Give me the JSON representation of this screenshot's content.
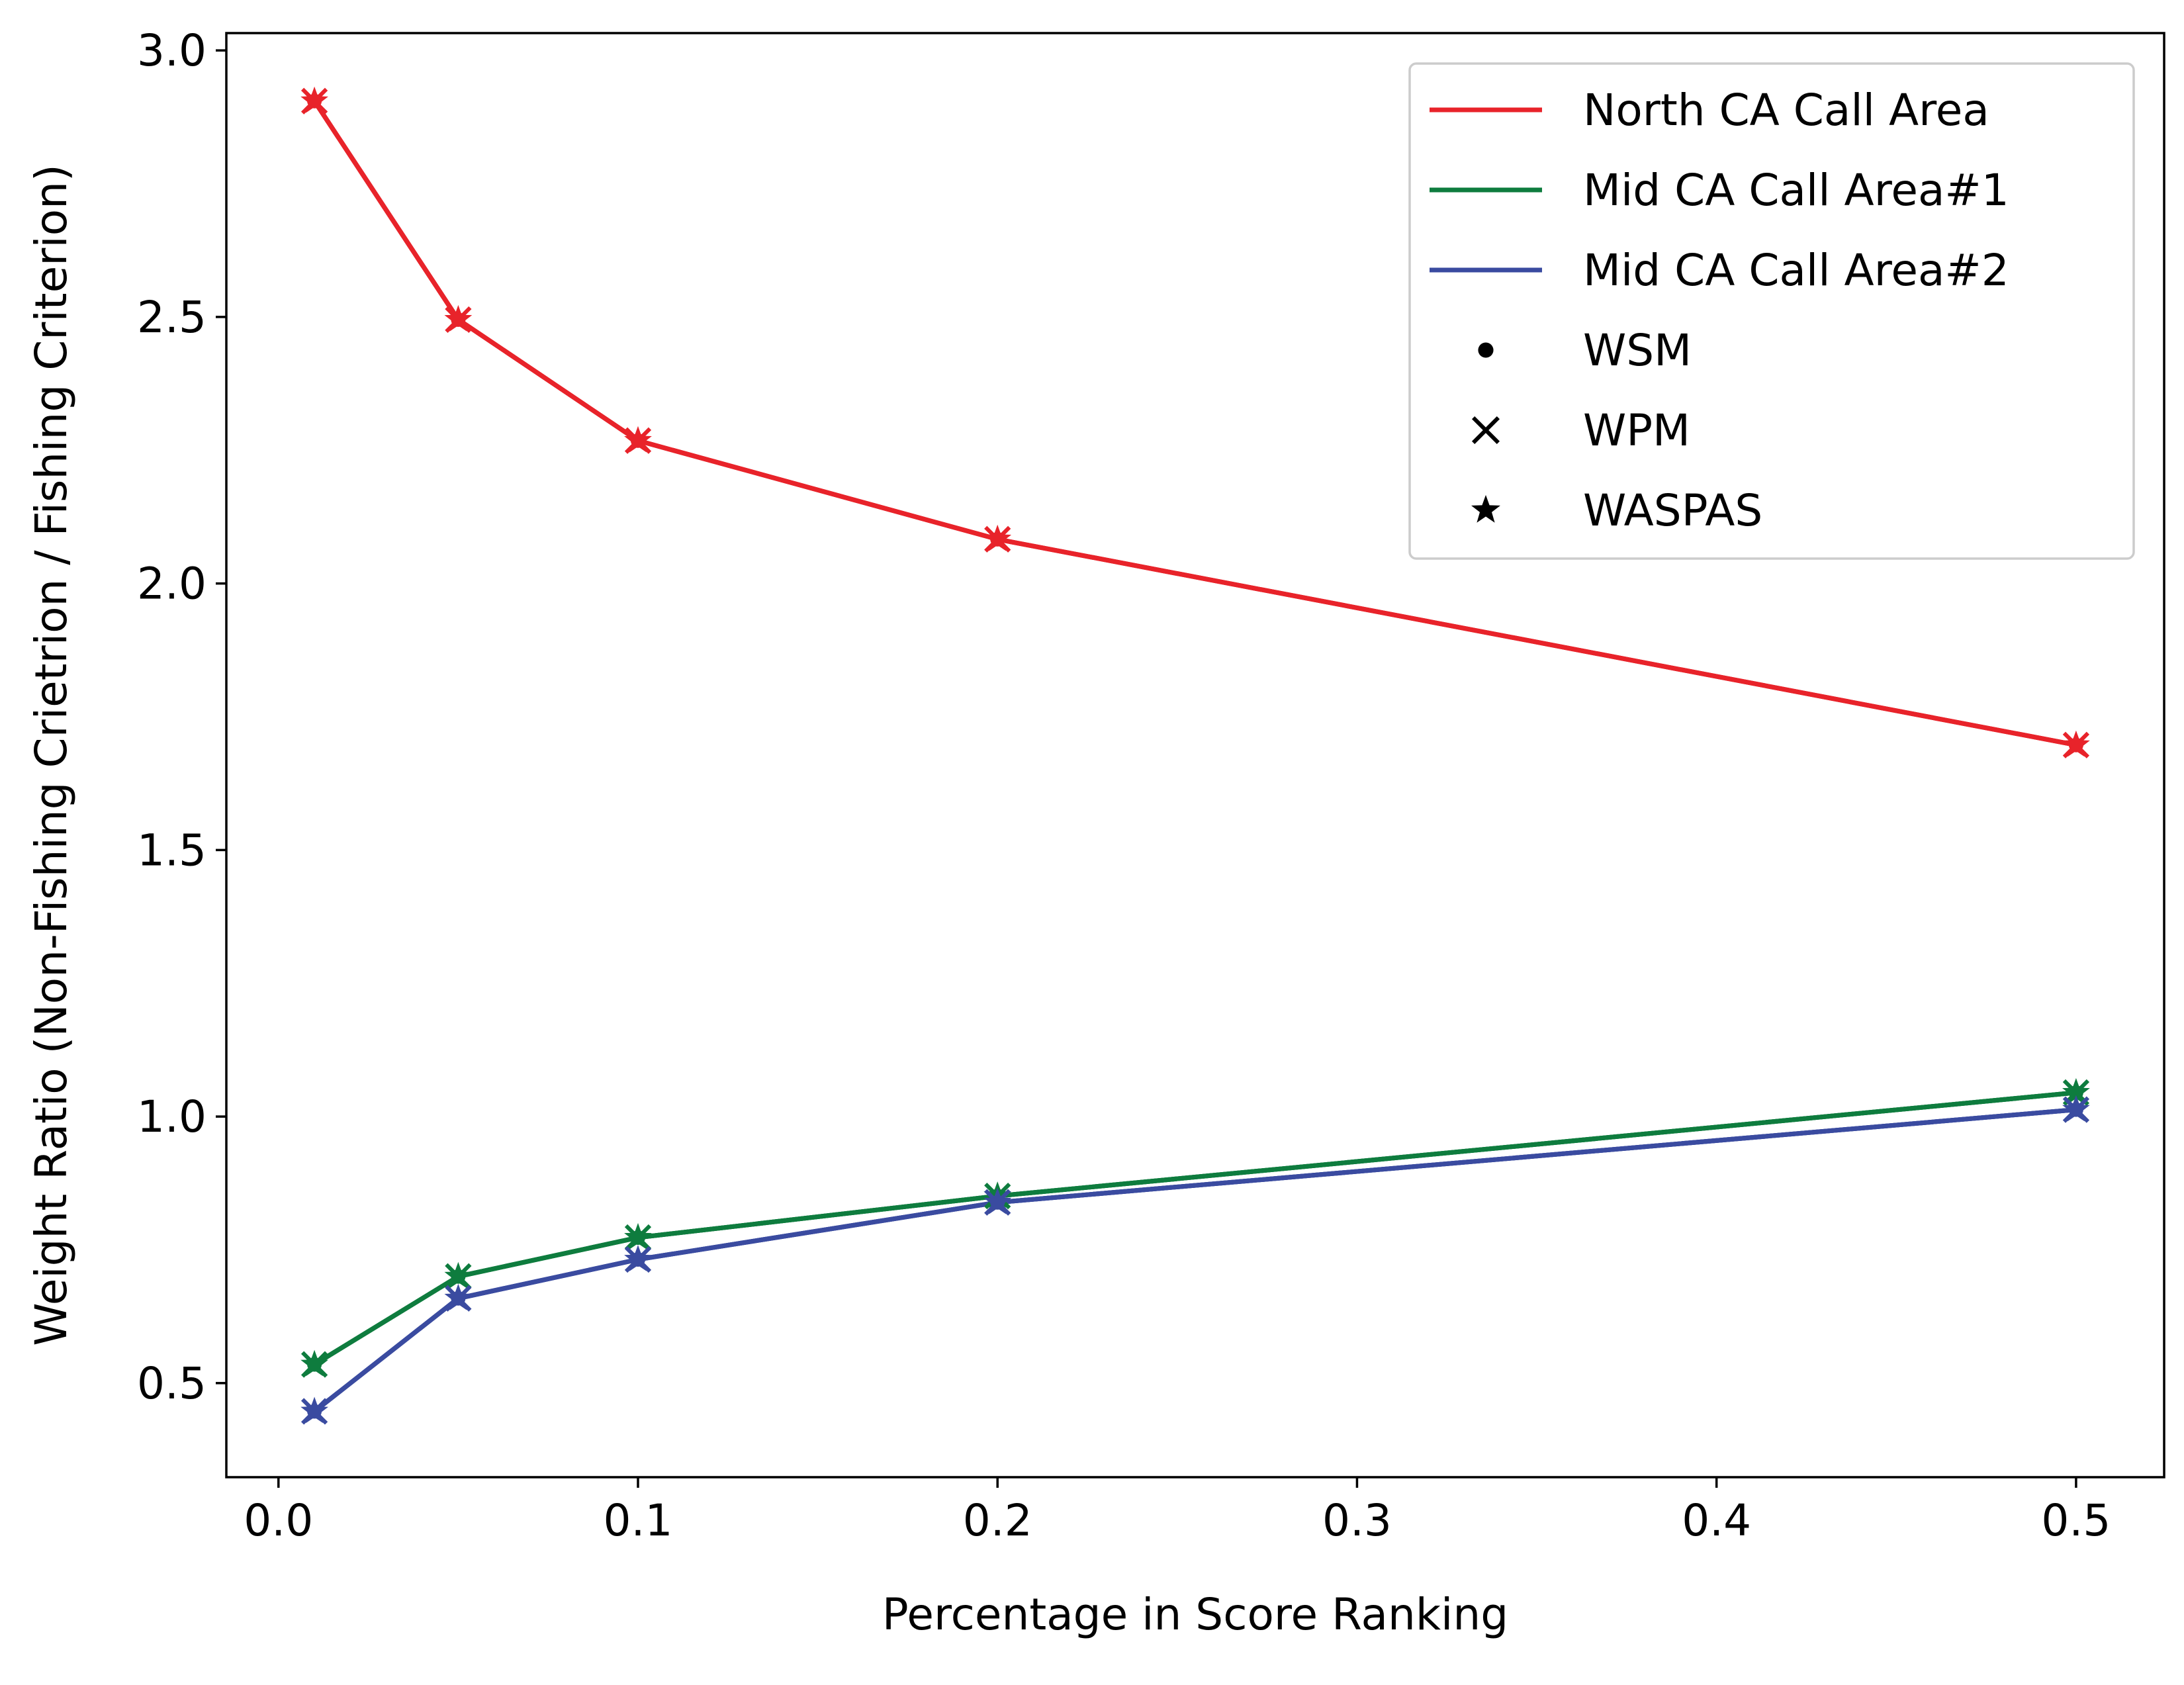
{
  "chart_data": {
    "type": "line",
    "title": "",
    "xlabel": "Percentage in Score Ranking",
    "ylabel": "Weight Ratio (Non-Fishing Crietrion / Fishing Criterion)",
    "xlim": [
      -0.0145,
      0.5245
    ],
    "ylim": [
      0.3235,
      3.0325
    ],
    "xticks": [
      "0.0",
      "0.1",
      "0.2",
      "0.3",
      "0.4",
      "0.5"
    ],
    "yticks": [
      "0.5",
      "1.0",
      "1.5",
      "2.0",
      "2.5",
      "3.0"
    ],
    "grid": false,
    "legend_position": "top-right",
    "x": [
      0.01,
      0.05,
      0.1,
      0.2,
      0.5
    ],
    "series": [
      {
        "name": "North CA Call Area",
        "color": "#e8232a",
        "methods": {
          "WSM": [
            2.905,
            2.495,
            2.268,
            2.083,
            1.697
          ],
          "WPM": [
            2.905,
            2.495,
            2.268,
            2.083,
            1.697
          ],
          "WASPAS": [
            2.905,
            2.495,
            2.268,
            2.083,
            1.697
          ]
        }
      },
      {
        "name": "Mid CA Call Area#1",
        "color": "#0e7c3e",
        "methods": {
          "WSM": [
            0.535,
            0.7,
            0.773,
            0.851,
            1.045
          ],
          "WPM": [
            0.535,
            0.7,
            0.773,
            0.851,
            1.045
          ],
          "WASPAS": [
            0.535,
            0.7,
            0.773,
            0.851,
            1.045
          ]
        }
      },
      {
        "name": "Mid CA Call Area#2",
        "color": "#3a4ba0",
        "methods": {
          "WSM": [
            0.447,
            0.659,
            0.732,
            0.839,
            1.013
          ],
          "WPM": [
            0.447,
            0.659,
            0.732,
            0.839,
            1.013
          ],
          "WASPAS": [
            0.447,
            0.659,
            0.732,
            0.839,
            1.013
          ]
        }
      }
    ],
    "marker_legend": [
      {
        "label": "WSM",
        "marker": "dot-icon"
      },
      {
        "label": "WPM",
        "marker": "cross-icon"
      },
      {
        "label": "WASPAS",
        "marker": "star-icon"
      }
    ]
  }
}
